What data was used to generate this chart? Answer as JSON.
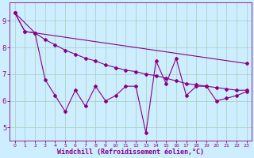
{
  "bg_color": "#cceeff",
  "grid_color": "#aaccbb",
  "line_color": "#880088",
  "marker": "D",
  "markersize": 2.0,
  "linewidth": 0.8,
  "xlabel": "Windchill (Refroidissement éolien,°C)",
  "xlabel_fontsize": 6.0,
  "xlabel_fontweight": "bold",
  "tick_fontsize_x": 4.5,
  "tick_fontsize_y": 6.0,
  "ylim": [
    4.5,
    9.7
  ],
  "xlim": [
    -0.5,
    23.5
  ],
  "yticks": [
    5,
    6,
    7,
    8,
    9
  ],
  "xticks": [
    0,
    1,
    2,
    3,
    4,
    5,
    6,
    7,
    8,
    9,
    10,
    11,
    12,
    13,
    14,
    15,
    16,
    17,
    18,
    19,
    20,
    21,
    22,
    23
  ],
  "series1_x": [
    0,
    1,
    2,
    3,
    4,
    5,
    6,
    7,
    8,
    9,
    10,
    11,
    12,
    13,
    14,
    15,
    16,
    17,
    18,
    19,
    20,
    21,
    22,
    23
  ],
  "series1_y": [
    9.3,
    8.6,
    8.55,
    8.3,
    8.1,
    7.9,
    7.75,
    7.6,
    7.5,
    7.35,
    7.25,
    7.15,
    7.1,
    7.0,
    6.95,
    6.85,
    6.75,
    6.65,
    6.6,
    6.55,
    6.5,
    6.45,
    6.4,
    6.4
  ],
  "series2_x": [
    0,
    1,
    2,
    3,
    4,
    5,
    6,
    7,
    8,
    9,
    10,
    11,
    12,
    13,
    14,
    15,
    16,
    17,
    18,
    19,
    20,
    21,
    22,
    23
  ],
  "series2_y": [
    9.3,
    8.6,
    8.55,
    6.8,
    6.2,
    5.6,
    6.4,
    5.8,
    6.55,
    6.0,
    6.2,
    6.55,
    6.55,
    4.8,
    7.5,
    6.65,
    7.6,
    6.2,
    6.55,
    6.55,
    6.0,
    6.1,
    6.2,
    6.35
  ],
  "series3_x": [
    0,
    2,
    23
  ],
  "series3_y": [
    9.3,
    8.55,
    7.4
  ]
}
